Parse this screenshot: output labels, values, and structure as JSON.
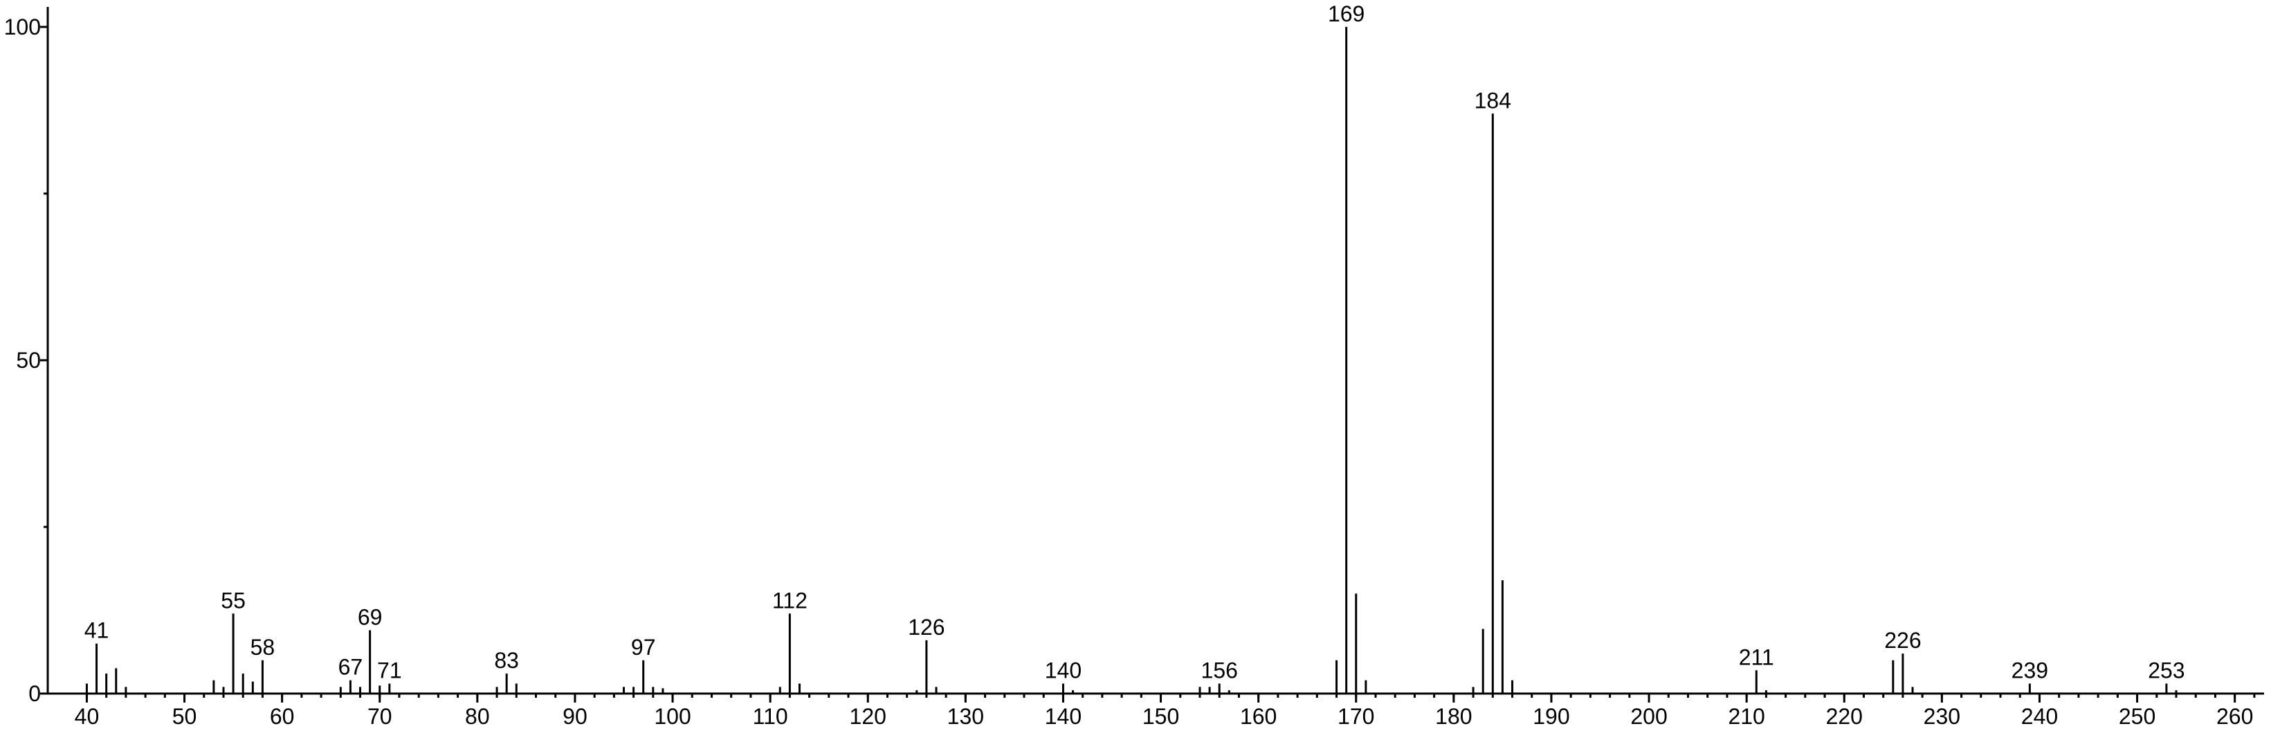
{
  "chart_data": {
    "type": "stem",
    "x": [
      40,
      41,
      42,
      43,
      44,
      53,
      54,
      55,
      56,
      57,
      58,
      66,
      67,
      68,
      69,
      70,
      71,
      82,
      83,
      84,
      95,
      96,
      97,
      98,
      99,
      111,
      112,
      113,
      125,
      126,
      127,
      140,
      141,
      154,
      155,
      156,
      157,
      168,
      169,
      170,
      171,
      182,
      183,
      184,
      185,
      186,
      211,
      212,
      225,
      226,
      227,
      239,
      253,
      254
    ],
    "values": [
      1.5,
      7.5,
      3,
      3.8,
      1,
      2,
      1,
      12,
      3,
      1.8,
      5,
      1,
      2,
      1,
      9.5,
      1.2,
      1.5,
      1,
      3,
      1.5,
      1,
      1,
      5,
      1,
      0.8,
      1,
      12,
      1.5,
      0.5,
      8,
      1,
      1.5,
      0.5,
      1,
      1,
      1.5,
      0.5,
      5,
      100,
      15,
      2,
      1,
      9.7,
      87,
      17,
      2,
      3.5,
      0.5,
      5,
      6,
      1,
      1.5,
      1.5,
      0.5
    ],
    "labels": [
      41,
      55,
      58,
      67,
      69,
      71,
      83,
      97,
      112,
      126,
      140,
      156,
      169,
      184,
      211,
      226,
      239,
      253
    ],
    "color": "#000000",
    "xlim": [
      36,
      263
    ],
    "ylim": [
      0,
      103
    ],
    "xticks": [
      40,
      50,
      60,
      70,
      80,
      90,
      100,
      110,
      120,
      130,
      140,
      150,
      160,
      170,
      180,
      190,
      200,
      210,
      220,
      230,
      240,
      250,
      260
    ],
    "yticks": [
      0,
      50,
      100
    ],
    "yminorticks": [
      25,
      75
    ]
  }
}
